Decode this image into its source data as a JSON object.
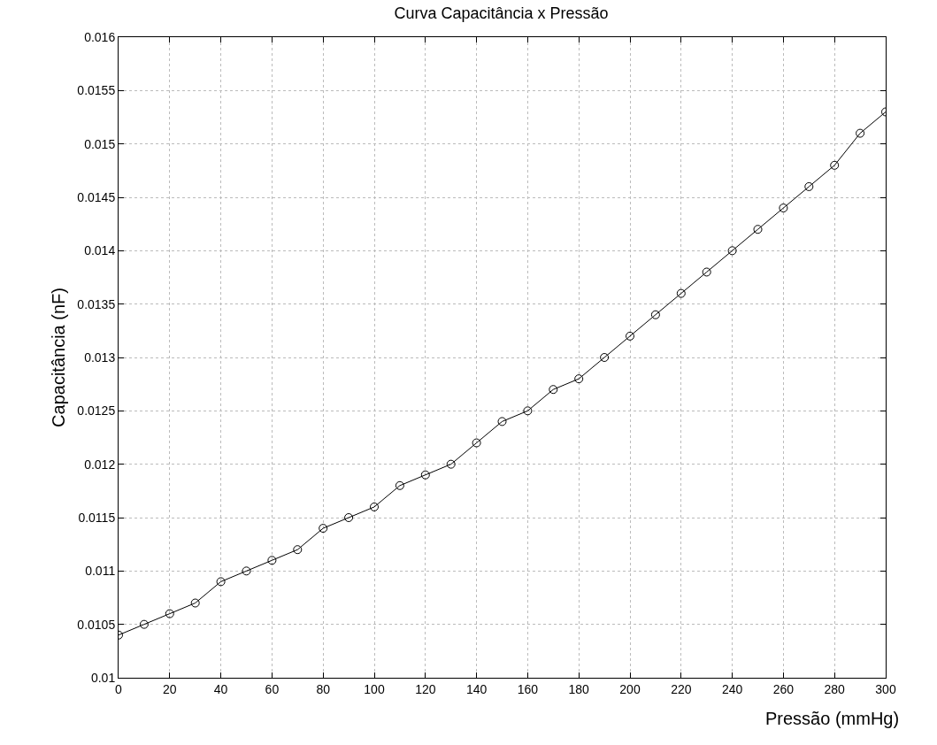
{
  "chart_data": {
    "type": "line",
    "title": "Curva Capacitância x Pressão",
    "xlabel": "Pressão (mmHg)",
    "ylabel": "Capacitância (nF)",
    "x": [
      0,
      10,
      20,
      30,
      40,
      50,
      60,
      70,
      80,
      90,
      100,
      110,
      120,
      130,
      140,
      150,
      160,
      170,
      180,
      190,
      200,
      210,
      220,
      230,
      240,
      250,
      260,
      270,
      280,
      290,
      300
    ],
    "series": [
      {
        "color": "#000000",
        "values": [
          0.0104,
          0.0105,
          0.0106,
          0.0107,
          0.0109,
          0.011,
          0.0111,
          0.0112,
          0.0114,
          0.0115,
          0.0116,
          0.0118,
          0.0119,
          0.012,
          0.0122,
          0.0124,
          0.0125,
          0.0127,
          0.0128,
          0.013,
          0.0132,
          0.0134,
          0.0136,
          0.0138,
          0.014,
          0.0142,
          0.0144,
          0.0146,
          0.0148,
          0.0151,
          0.0153
        ]
      }
    ],
    "xlim": [
      0,
      300
    ],
    "xticks": [
      0,
      20,
      40,
      60,
      80,
      100,
      120,
      140,
      160,
      180,
      200,
      220,
      240,
      260,
      280,
      300
    ],
    "ylim": [
      0.01,
      0.016
    ],
    "yticks": [
      0.01,
      0.0105,
      0.011,
      0.0115,
      0.012,
      0.0125,
      0.013,
      0.0135,
      0.014,
      0.0145,
      0.015,
      0.0155,
      0.016
    ],
    "grid": true,
    "marker": "circle",
    "line_style": "solid",
    "legend": false
  }
}
